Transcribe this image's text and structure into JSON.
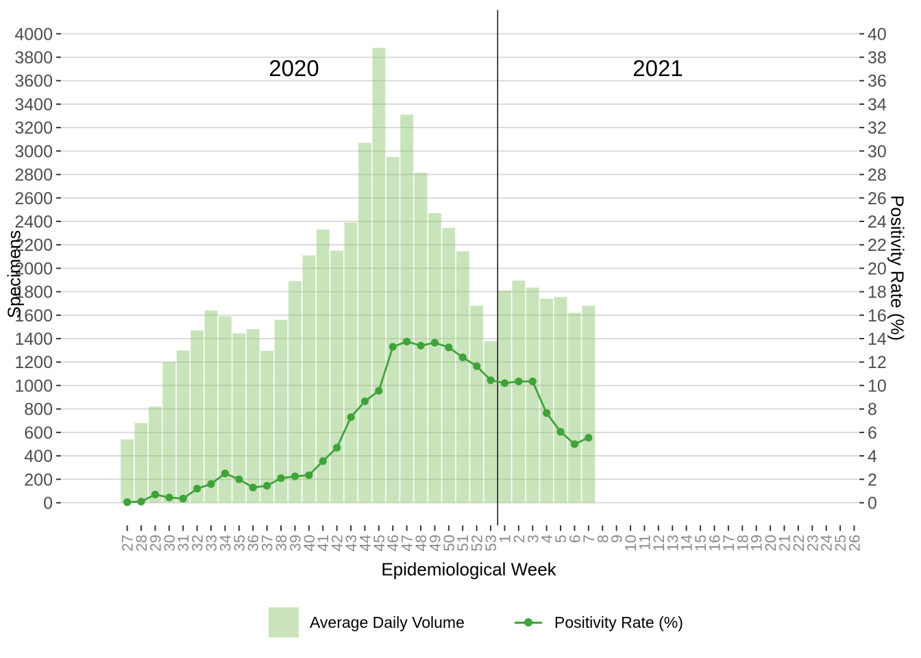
{
  "chart_data": {
    "type": "combo_bar_line",
    "x_axis": {
      "label": "Epidemiological Week",
      "categories": [
        "27",
        "28",
        "29",
        "30",
        "31",
        "32",
        "33",
        "34",
        "35",
        "36",
        "37",
        "38",
        "39",
        "40",
        "41",
        "42",
        "43",
        "44",
        "45",
        "46",
        "47",
        "48",
        "49",
        "50",
        "51",
        "52",
        "53",
        "1",
        "2",
        "3",
        "4",
        "5",
        "6",
        "7",
        "8",
        "9",
        "10",
        "11",
        "12",
        "13",
        "14",
        "15",
        "16",
        "17",
        "18",
        "19",
        "20",
        "21",
        "22",
        "23",
        "24",
        "25",
        "26"
      ]
    },
    "left_axis": {
      "label": "Specimens",
      "min": 0,
      "max": 4000,
      "step": 200,
      "ticks": [
        "0",
        "200",
        "400",
        "600",
        "800",
        "1000",
        "1200",
        "1400",
        "1600",
        "1800",
        "2000",
        "2200",
        "2400",
        "2600",
        "2800",
        "3000",
        "3200",
        "3400",
        "3600",
        "3800",
        "4000"
      ]
    },
    "right_axis": {
      "label": "Positivity Rate (%)",
      "min": 0,
      "max": 40,
      "step": 2,
      "ticks": [
        "0",
        "2",
        "4",
        "6",
        "8",
        "10",
        "12",
        "14",
        "16",
        "18",
        "20",
        "22",
        "24",
        "26",
        "28",
        "30",
        "32",
        "34",
        "36",
        "38",
        "40"
      ]
    },
    "series": [
      {
        "name": "Average Daily Volume",
        "type": "bar",
        "axis": "left",
        "values": [
          540,
          680,
          820,
          1200,
          1300,
          1470,
          1640,
          1590,
          1445,
          1480,
          1295,
          1560,
          1890,
          2110,
          2330,
          2150,
          2390,
          3070,
          3880,
          2950,
          3310,
          2815,
          2470,
          2345,
          2145,
          1680,
          1380,
          1810,
          1895,
          1835,
          1740,
          1755,
          1620,
          1680
        ]
      },
      {
        "name": "Positivity Rate (%)",
        "type": "line",
        "axis": "right",
        "values": [
          0.05,
          0.1,
          0.7,
          0.45,
          0.35,
          1.2,
          1.6,
          2.5,
          2.0,
          1.3,
          1.45,
          2.1,
          2.25,
          2.35,
          3.55,
          4.7,
          7.3,
          8.65,
          9.55,
          13.3,
          13.75,
          13.4,
          13.65,
          13.25,
          12.4,
          11.65,
          10.45,
          10.2,
          10.35,
          10.35,
          7.65,
          6.05,
          5.0,
          5.55
        ]
      }
    ],
    "annotations": {
      "left_year": "2020",
      "right_year": "2021",
      "separator_between_categories": [
        "53",
        "1"
      ]
    },
    "legend_position": "bottom",
    "grid": "horizontal-only",
    "colors": {
      "bar_fill": "#c9e4bb",
      "bar_fill_rgba": "rgba(135,195,104,0.45)",
      "line": "#3fa33a",
      "grid": "#d7d7d7",
      "separator": "#111111",
      "tick": "#343434",
      "y_text": "#4d4d4d",
      "x_text": "#8a8a8a"
    }
  }
}
